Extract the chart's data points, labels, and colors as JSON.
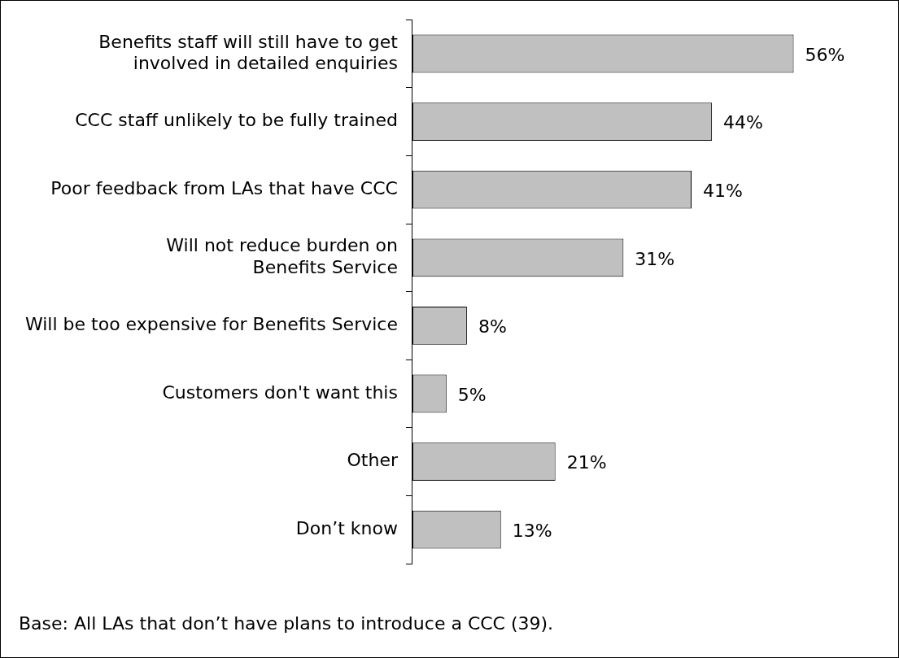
{
  "chart_data": {
    "type": "bar",
    "orientation": "horizontal",
    "categories": [
      "Benefits staff will still have to get\ninvolved in detailed enquiries",
      "CCC staff unlikely to be fully trained",
      "Poor feedback from LAs that have CCC",
      "Will not reduce burden on\nBenefits Service",
      "Will be too expensive for Benefits Service",
      "Customers don't want this",
      "Other",
      "Don’t know"
    ],
    "values": [
      56,
      44,
      41,
      31,
      8,
      5,
      21,
      13
    ],
    "value_labels": [
      "56%",
      "44%",
      "41%",
      "31%",
      "8%",
      "5%",
      "21%",
      "13%"
    ],
    "color": "#c0c0c0",
    "annotations": [
      "Base: All LAs that don’t have plans to introduce a CCC (39)."
    ],
    "data_labels": false
  }
}
